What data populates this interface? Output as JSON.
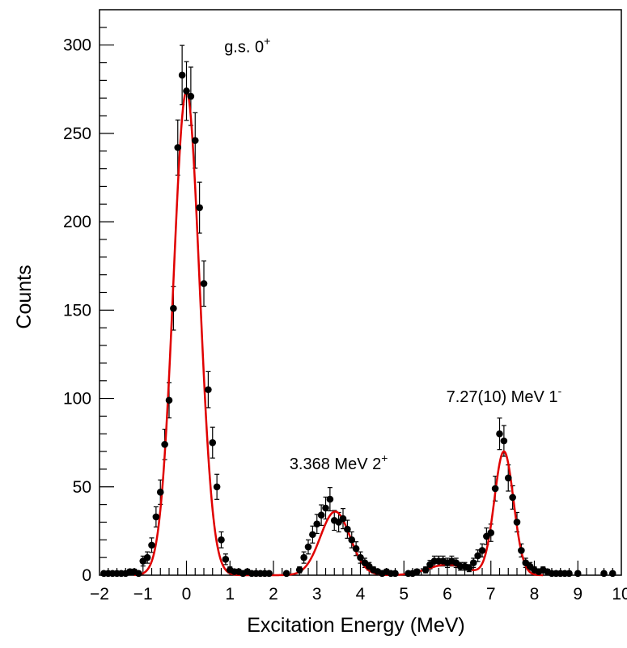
{
  "chart_data": {
    "type": "scatter",
    "xlabel": "Excitation Energy (MeV)",
    "ylabel": "Counts",
    "xlim": [
      -2,
      10
    ],
    "ylim": [
      0,
      320
    ],
    "x_ticks": [
      -2,
      -1,
      0,
      1,
      2,
      3,
      4,
      5,
      6,
      7,
      8,
      9,
      10
    ],
    "y_ticks": [
      0,
      50,
      100,
      150,
      200,
      250,
      300
    ],
    "tick_labels_x": [
      "−2",
      "−1",
      "0",
      "1",
      "2",
      "3",
      "4",
      "5",
      "6",
      "7",
      "8",
      "9",
      "10"
    ],
    "tick_labels_y": [
      "0",
      "50",
      "100",
      "150",
      "200",
      "250",
      "300"
    ],
    "grid": false,
    "series": [
      {
        "kind": "data-points-with-error-bars",
        "color": "#000000",
        "x": [
          -1.9,
          -1.8,
          -1.7,
          -1.6,
          -1.5,
          -1.4,
          -1.3,
          -1.2,
          -1.1,
          -1.0,
          -0.9,
          -0.8,
          -0.7,
          -0.6,
          -0.5,
          -0.4,
          -0.3,
          -0.2,
          -0.1,
          0.0,
          0.1,
          0.2,
          0.3,
          0.4,
          0.5,
          0.6,
          0.7,
          0.8,
          0.9,
          1.0,
          1.1,
          1.2,
          1.3,
          1.4,
          1.5,
          1.6,
          1.7,
          1.8,
          1.9,
          2.3,
          2.6,
          2.7,
          2.8,
          2.9,
          3.0,
          3.1,
          3.2,
          3.3,
          3.4,
          3.5,
          3.6,
          3.7,
          3.8,
          3.9,
          4.0,
          4.1,
          4.2,
          4.3,
          4.4,
          4.5,
          4.6,
          4.7,
          4.8,
          5.1,
          5.2,
          5.3,
          5.5,
          5.6,
          5.7,
          5.8,
          5.9,
          6.0,
          6.1,
          6.2,
          6.3,
          6.4,
          6.5,
          6.6,
          6.7,
          6.8,
          6.9,
          7.0,
          7.1,
          7.2,
          7.3,
          7.4,
          7.5,
          7.6,
          7.7,
          7.8,
          7.9,
          8.0,
          8.1,
          8.2,
          8.3,
          8.4,
          8.5,
          8.6,
          8.7,
          8.8,
          9.0,
          9.6,
          9.8
        ],
        "y": [
          1,
          1,
          1,
          1,
          1,
          1,
          2,
          2,
          1,
          8,
          10,
          17,
          33,
          47,
          74,
          99,
          151,
          242,
          283,
          274,
          271,
          246,
          208,
          165,
          105,
          75,
          50,
          20,
          9,
          3,
          2,
          2,
          1,
          2,
          1,
          1,
          1,
          1,
          1,
          1,
          3,
          10,
          16,
          23,
          29,
          34,
          38,
          43,
          31,
          30,
          32,
          26,
          20,
          15,
          10,
          7,
          5,
          3,
          2,
          1,
          2,
          1,
          1,
          1,
          1,
          2,
          3,
          6,
          8,
          8,
          8,
          7,
          8,
          7,
          5,
          5,
          4,
          7,
          11,
          14,
          22,
          24,
          49,
          80,
          76,
          55,
          44,
          30,
          14,
          7,
          5,
          3,
          2,
          3,
          2,
          1,
          1,
          1,
          1,
          1,
          1,
          1,
          1
        ],
        "yerr": [
          1,
          1,
          1,
          1,
          1,
          1,
          1.4,
          1.4,
          1,
          2.8,
          3.2,
          4.1,
          5.7,
          6.9,
          8.6,
          10,
          12.3,
          15.6,
          16.8,
          16.6,
          16.5,
          15.7,
          14.4,
          12.8,
          10.2,
          8.7,
          7.1,
          4.5,
          3,
          1.7,
          1.4,
          1.4,
          1,
          1.4,
          1,
          1,
          1,
          1,
          1,
          1,
          1.7,
          3.2,
          4,
          4.8,
          5.4,
          5.8,
          6.2,
          6.6,
          5.6,
          5.5,
          5.7,
          5.1,
          4.5,
          3.9,
          3.2,
          2.6,
          2.2,
          1.7,
          1.4,
          1,
          1.4,
          1,
          1,
          1,
          1,
          1.4,
          1.7,
          2.4,
          2.8,
          2.8,
          2.8,
          2.6,
          2.8,
          2.6,
          2.2,
          2.2,
          2,
          2.6,
          3.3,
          3.7,
          4.7,
          4.9,
          7,
          8.9,
          8.7,
          7.4,
          6.6,
          5.5,
          3.7,
          2.6,
          2.2,
          1.7,
          1.4,
          1.7,
          1.4,
          1,
          1,
          1,
          1,
          1,
          1,
          1,
          1
        ]
      },
      {
        "kind": "fit-curve-gaussians",
        "color": "#e00000",
        "peaks": [
          {
            "mu": 0.0,
            "amplitude": 274,
            "sigma": 0.3
          },
          {
            "mu": 3.42,
            "amplitude": 36,
            "sigma": 0.34
          },
          {
            "mu": 6.0,
            "amplitude": 6,
            "sigma": 0.45
          },
          {
            "mu": 7.3,
            "amplitude": 70,
            "sigma": 0.22
          }
        ]
      }
    ],
    "annotations": [
      {
        "base": "g.s. 0",
        "sup": "+",
        "x": 1.4,
        "y": 296
      },
      {
        "base": "3.368 MeV 2",
        "sup": "+",
        "x": 3.5,
        "y": 60
      },
      {
        "base": "7.27(10) MeV 1",
        "sup": "-",
        "x": 7.3,
        "y": 98
      }
    ]
  }
}
